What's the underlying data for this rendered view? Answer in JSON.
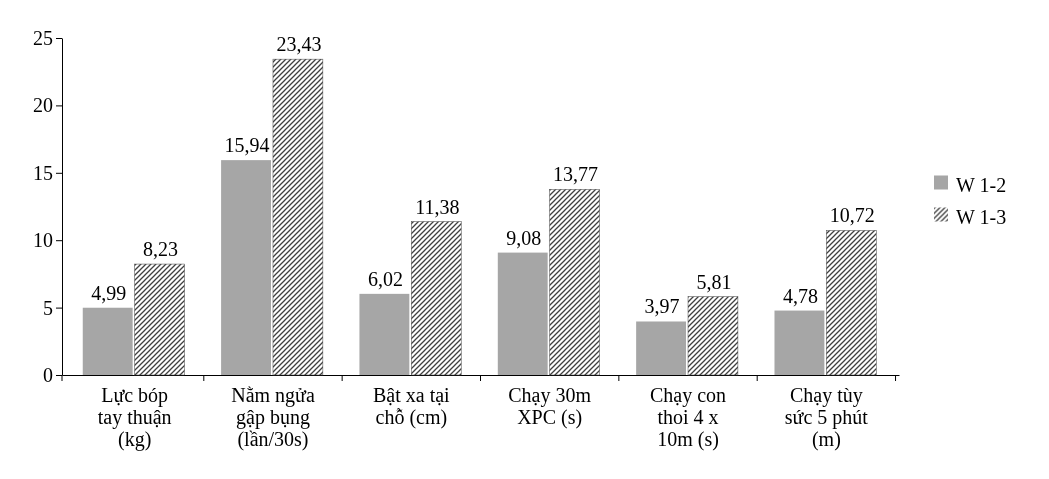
{
  "chart_data": {
    "type": "bar",
    "categories": [
      "Lực bóp tay thuận (kg)",
      "Nằm ngửa gập bụng (lần/30s)",
      "Bật xa tại chỗ (cm)",
      "Chạy 30m XPC (s)",
      "Chạy con thoi 4 x 10m (s)",
      "Chạy tùy sức 5 phút (m)"
    ],
    "series": [
      {
        "name": "W 1-2",
        "color": "#a6a6a6",
        "values": [
          4.99,
          15.94,
          6.02,
          9.08,
          3.97,
          4.78
        ],
        "value_labels": [
          "4,99",
          "15,94",
          "6,02",
          "9,08",
          "3,97",
          "4,78"
        ]
      },
      {
        "name": "W 1-3",
        "color": "#404040",
        "values": [
          8.23,
          23.43,
          11.38,
          13.77,
          5.81,
          10.72
        ],
        "value_labels": [
          "8,23",
          "23,43",
          "11,38",
          "13,77",
          "5,81",
          "10,72"
        ]
      }
    ],
    "ylim": [
      0,
      25
    ],
    "yticks": [
      0,
      5,
      10,
      15,
      20,
      25
    ],
    "grid": false,
    "legend": "right"
  }
}
